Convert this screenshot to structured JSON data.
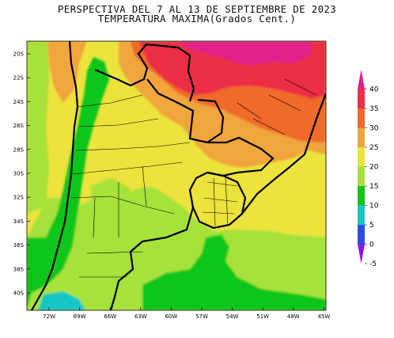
{
  "title": {
    "line1": "PERSPECTIVA DEL 7 AL 13 DE SEPTIEMBRE DE 2023",
    "line2": "TEMPERATURA MAXIMA(Grados Cent.)"
  },
  "lat_labels": [
    "20S",
    "22S",
    "24S",
    "26S",
    "28S",
    "30S",
    "32S",
    "34S",
    "36S",
    "38S",
    "40S"
  ],
  "lon_labels": [
    "72W",
    "69W",
    "66W",
    "63W",
    "60W",
    "57W",
    "54W",
    "51W",
    "48W",
    "45W"
  ],
  "colorbar": {
    "labels": [
      "40",
      "35",
      "30",
      "25",
      "20",
      "15",
      "10",
      "5",
      "0",
      "-5"
    ],
    "colors": [
      "#e0208a",
      "#ec2f45",
      "#f06a2c",
      "#f0a63e",
      "#ece33c",
      "#a6e23b",
      "#11c61a",
      "#18c6c4",
      "#2c4be8",
      "#8d16e0"
    ]
  },
  "colors": {
    "c40": "#e0208a",
    "c35": "#ec2f45",
    "c30": "#f06a2c",
    "c25": "#f0a63e",
    "c20": "#ece33c",
    "c15": "#a6e23b",
    "c10": "#11c61a",
    "c5": "#18c6c4"
  }
}
